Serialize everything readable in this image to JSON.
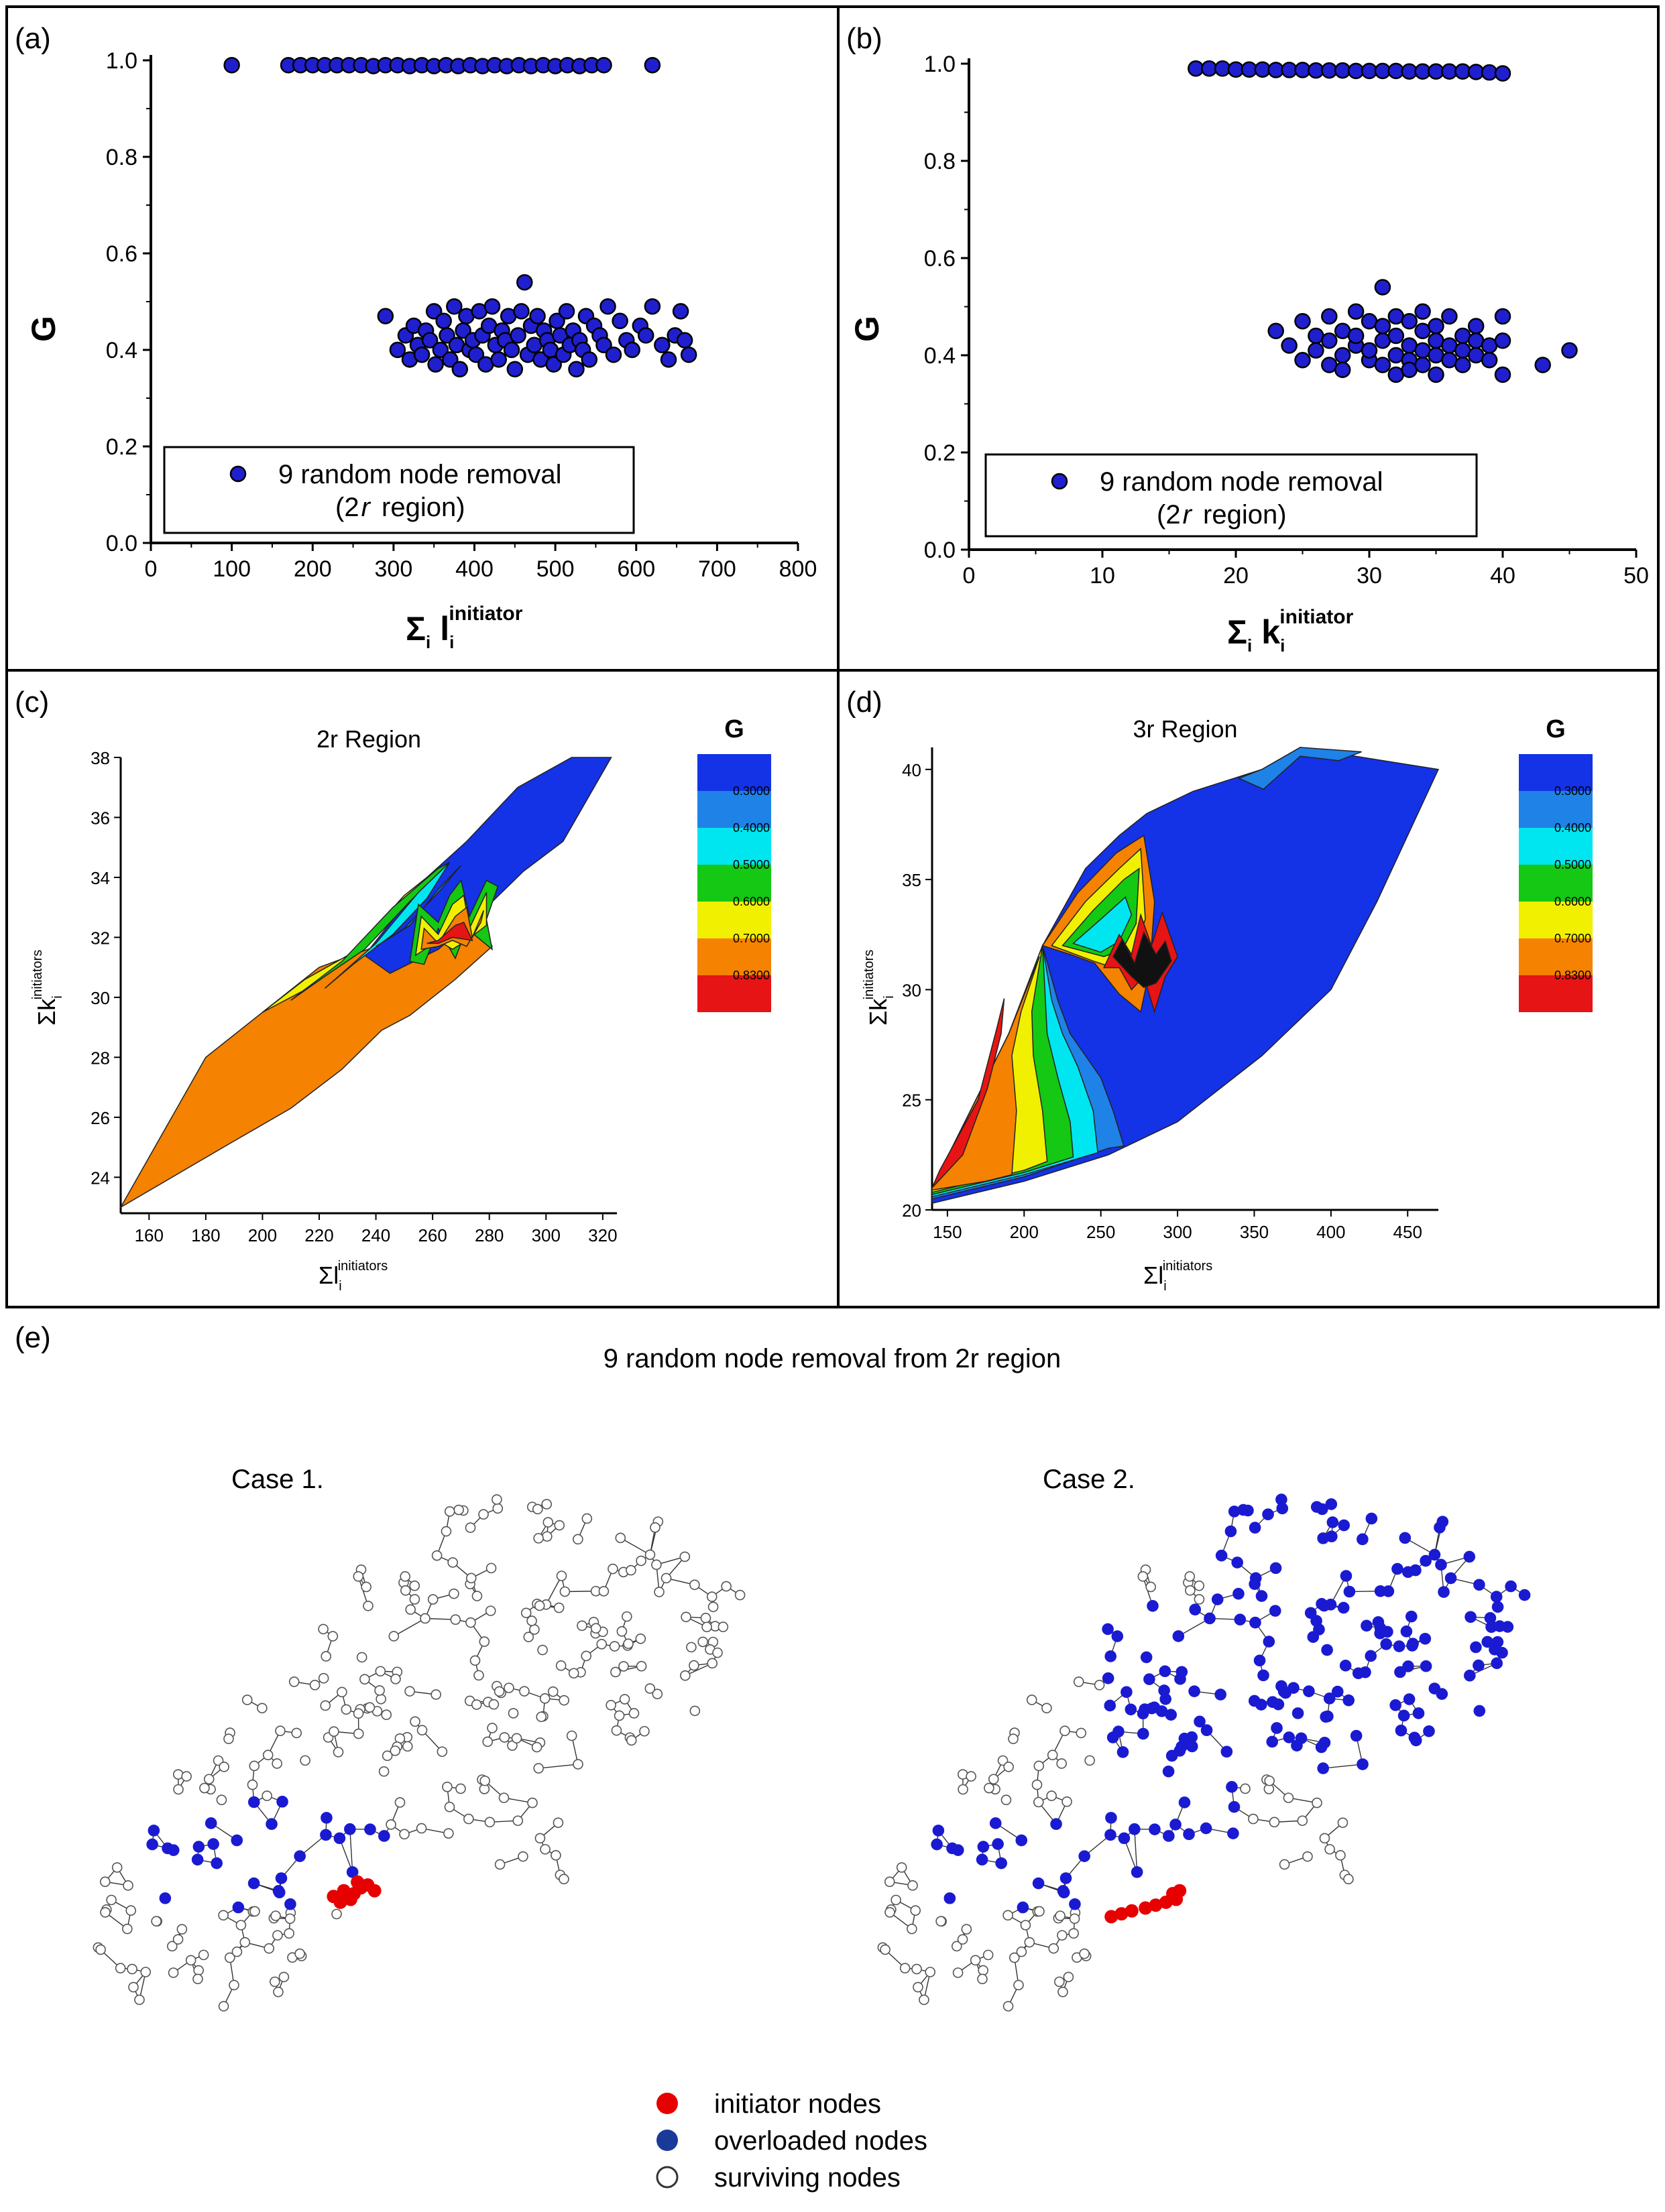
{
  "panel_labels": [
    "(a)",
    "(b)",
    "(c)",
    "(d)",
    "(e)"
  ],
  "chart_data": [
    {
      "id": "a",
      "type": "scatter",
      "xlabel": "Σi li initiator",
      "ylabel": "G",
      "xlim": [
        0,
        800
      ],
      "ylim": [
        0.0,
        1.0
      ],
      "xticks": [
        0,
        100,
        200,
        300,
        400,
        500,
        600,
        700,
        800
      ],
      "yticks": [
        0.0,
        0.2,
        0.4,
        0.6,
        0.8,
        1.0
      ],
      "legend": {
        "entries": [
          "9 random node removal",
          "(2r region)"
        ],
        "placement": "bottom-left"
      },
      "marker_color": "#1f1fcf",
      "series": [
        {
          "name": "9 random node removal",
          "points": [
            [
              100,
              0.99
            ],
            [
              170,
              0.99
            ],
            [
              185,
              0.99
            ],
            [
              200,
              0.99
            ],
            [
              215,
              0.99
            ],
            [
              230,
              0.99
            ],
            [
              245,
              0.99
            ],
            [
              260,
              0.99
            ],
            [
              275,
              0.988
            ],
            [
              290,
              0.99
            ],
            [
              305,
              0.99
            ],
            [
              320,
              0.988
            ],
            [
              335,
              0.99
            ],
            [
              350,
              0.988
            ],
            [
              365,
              0.99
            ],
            [
              380,
              0.988
            ],
            [
              395,
              0.99
            ],
            [
              410,
              0.988
            ],
            [
              425,
              0.99
            ],
            [
              440,
              0.988
            ],
            [
              455,
              0.99
            ],
            [
              470,
              0.988
            ],
            [
              485,
              0.99
            ],
            [
              500,
              0.988
            ],
            [
              515,
              0.99
            ],
            [
              530,
              0.988
            ],
            [
              545,
              0.99
            ],
            [
              560,
              0.99
            ],
            [
              620,
              0.99
            ],
            [
              290,
              0.47
            ],
            [
              305,
              0.4
            ],
            [
              315,
              0.43
            ],
            [
              320,
              0.38
            ],
            [
              325,
              0.45
            ],
            [
              330,
              0.41
            ],
            [
              335,
              0.39
            ],
            [
              340,
              0.44
            ],
            [
              345,
              0.42
            ],
            [
              350,
              0.48
            ],
            [
              352,
              0.37
            ],
            [
              358,
              0.4
            ],
            [
              362,
              0.46
            ],
            [
              366,
              0.43
            ],
            [
              370,
              0.38
            ],
            [
              375,
              0.49
            ],
            [
              378,
              0.41
            ],
            [
              382,
              0.36
            ],
            [
              386,
              0.44
            ],
            [
              390,
              0.47
            ],
            [
              394,
              0.4
            ],
            [
              398,
              0.42
            ],
            [
              402,
              0.39
            ],
            [
              406,
              0.48
            ],
            [
              410,
              0.43
            ],
            [
              414,
              0.37
            ],
            [
              418,
              0.45
            ],
            [
              422,
              0.49
            ],
            [
              426,
              0.41
            ],
            [
              430,
              0.38
            ],
            [
              434,
              0.44
            ],
            [
              438,
              0.42
            ],
            [
              442,
              0.47
            ],
            [
              446,
              0.4
            ],
            [
              450,
              0.36
            ],
            [
              454,
              0.43
            ],
            [
              458,
              0.48
            ],
            [
              462,
              0.54
            ],
            [
              466,
              0.39
            ],
            [
              470,
              0.45
            ],
            [
              474,
              0.41
            ],
            [
              478,
              0.47
            ],
            [
              482,
              0.38
            ],
            [
              486,
              0.44
            ],
            [
              490,
              0.42
            ],
            [
              494,
              0.4
            ],
            [
              498,
              0.37
            ],
            [
              502,
              0.46
            ],
            [
              506,
              0.43
            ],
            [
              510,
              0.39
            ],
            [
              514,
              0.48
            ],
            [
              518,
              0.41
            ],
            [
              522,
              0.44
            ],
            [
              526,
              0.36
            ],
            [
              530,
              0.42
            ],
            [
              534,
              0.4
            ],
            [
              538,
              0.47
            ],
            [
              542,
              0.38
            ],
            [
              548,
              0.45
            ],
            [
              555,
              0.43
            ],
            [
              560,
              0.41
            ],
            [
              565,
              0.49
            ],
            [
              572,
              0.39
            ],
            [
              580,
              0.46
            ],
            [
              588,
              0.42
            ],
            [
              595,
              0.4
            ],
            [
              605,
              0.45
            ],
            [
              612,
              0.43
            ],
            [
              620,
              0.49
            ],
            [
              632,
              0.41
            ],
            [
              640,
              0.38
            ],
            [
              648,
              0.43
            ],
            [
              655,
              0.48
            ],
            [
              660,
              0.42
            ],
            [
              665,
              0.39
            ]
          ]
        }
      ]
    },
    {
      "id": "b",
      "type": "scatter",
      "xlabel": "Σi ki initiator",
      "ylabel": "G",
      "xlim": [
        0,
        50
      ],
      "ylim": [
        0.0,
        1.0
      ],
      "xticks": [
        0,
        10,
        20,
        30,
        40,
        50
      ],
      "yticks": [
        0.0,
        0.2,
        0.4,
        0.6,
        0.8,
        1.0
      ],
      "legend": {
        "entries": [
          "9 random node removal",
          "(2r region)"
        ],
        "placement": "bottom-left"
      },
      "marker_color": "#1f1fcf",
      "series": [
        {
          "name": "9 random node removal",
          "points": [
            [
              17,
              0.99
            ],
            [
              18,
              0.99
            ],
            [
              19,
              0.99
            ],
            [
              20,
              0.988
            ],
            [
              21,
              0.988
            ],
            [
              22,
              0.988
            ],
            [
              23,
              0.987
            ],
            [
              24,
              0.987
            ],
            [
              25,
              0.987
            ],
            [
              26,
              0.986
            ],
            [
              27,
              0.986
            ],
            [
              28,
              0.986
            ],
            [
              29,
              0.985
            ],
            [
              30,
              0.985
            ],
            [
              31,
              0.985
            ],
            [
              32,
              0.985
            ],
            [
              33,
              0.984
            ],
            [
              34,
              0.984
            ],
            [
              35,
              0.984
            ],
            [
              36,
              0.984
            ],
            [
              37,
              0.984
            ],
            [
              38,
              0.983
            ],
            [
              39,
              0.982
            ],
            [
              40,
              0.98
            ],
            [
              23,
              0.45
            ],
            [
              24,
              0.42
            ],
            [
              25,
              0.47
            ],
            [
              25,
              0.39
            ],
            [
              26,
              0.44
            ],
            [
              26,
              0.41
            ],
            [
              27,
              0.48
            ],
            [
              27,
              0.38
            ],
            [
              27,
              0.43
            ],
            [
              28,
              0.45
            ],
            [
              28,
              0.4
            ],
            [
              28,
              0.37
            ],
            [
              29,
              0.49
            ],
            [
              29,
              0.42
            ],
            [
              29,
              0.44
            ],
            [
              30,
              0.39
            ],
            [
              30,
              0.47
            ],
            [
              30,
              0.41
            ],
            [
              31,
              0.54
            ],
            [
              31,
              0.43
            ],
            [
              31,
              0.38
            ],
            [
              31,
              0.46
            ],
            [
              32,
              0.4
            ],
            [
              32,
              0.48
            ],
            [
              32,
              0.36
            ],
            [
              32,
              0.44
            ],
            [
              33,
              0.42
            ],
            [
              33,
              0.39
            ],
            [
              33,
              0.47
            ],
            [
              33,
              0.37
            ],
            [
              34,
              0.45
            ],
            [
              34,
              0.41
            ],
            [
              34,
              0.38
            ],
            [
              34,
              0.49
            ],
            [
              35,
              0.43
            ],
            [
              35,
              0.4
            ],
            [
              35,
              0.36
            ],
            [
              35,
              0.46
            ],
            [
              36,
              0.42
            ],
            [
              36,
              0.39
            ],
            [
              36,
              0.48
            ],
            [
              37,
              0.44
            ],
            [
              37,
              0.41
            ],
            [
              37,
              0.38
            ],
            [
              38,
              0.46
            ],
            [
              38,
              0.4
            ],
            [
              38,
              0.43
            ],
            [
              39,
              0.42
            ],
            [
              39,
              0.39
            ],
            [
              40,
              0.43
            ],
            [
              40,
              0.36
            ],
            [
              40,
              0.48
            ],
            [
              43,
              0.38
            ],
            [
              45,
              0.41
            ]
          ]
        }
      ]
    },
    {
      "id": "c",
      "type": "contour",
      "title": "2r  Region",
      "xlabel": "Σl initiators i",
      "ylabel": "Σk initiators i",
      "xlim": [
        150,
        325
      ],
      "ylim": [
        22.8,
        38
      ],
      "xticks": [
        160,
        180,
        200,
        220,
        240,
        260,
        280,
        300,
        320
      ],
      "yticks": [
        24,
        26,
        28,
        30,
        32,
        34,
        36,
        38
      ],
      "colorbar": {
        "title": "G",
        "levels": [
          "0.3000",
          "0.4000",
          "0.5000",
          "0.6000",
          "0.7000",
          "0.8300"
        ],
        "colors": [
          "#1432e6",
          "#1e82e6",
          "#00e6f0",
          "#14c814",
          "#f0f000",
          "#f58200",
          "#e61414"
        ]
      },
      "regions": [
        {
          "level": "orange",
          "points": [
            [
              150,
              23
            ],
            [
              180,
              28
            ],
            [
              200,
              29.5
            ],
            [
              220,
              31
            ],
            [
              240,
              31.7
            ],
            [
              260,
              32.2
            ],
            [
              275,
              32.8
            ],
            [
              280,
              31.5
            ],
            [
              265,
              30.8
            ],
            [
              245,
              29
            ],
            [
              230,
              27.8
            ],
            [
              210,
              26.5
            ],
            [
              185,
              25
            ],
            [
              150,
              23
            ]
          ]
        },
        {
          "level": "blue",
          "points": [
            [
              245,
              30.8
            ],
            [
              275,
              33.3
            ],
            [
              295,
              34
            ],
            [
              308,
              35
            ],
            [
              322,
              38
            ],
            [
              308,
              38
            ],
            [
              290,
              37
            ],
            [
              272,
              35
            ],
            [
              258,
              34
            ],
            [
              245,
              32.5
            ],
            [
              235,
              31.5
            ],
            [
              245,
              30.8
            ]
          ]
        }
      ]
    },
    {
      "id": "d",
      "type": "contour",
      "title": "3r  Region",
      "xlabel": "Σl initiators i",
      "ylabel": "Σk initiators i",
      "xlim": [
        140,
        470
      ],
      "ylim": [
        20,
        41
      ],
      "xticks": [
        150,
        200,
        250,
        300,
        350,
        400,
        450
      ],
      "yticks": [
        20,
        25,
        30,
        35,
        40
      ],
      "colorbar": {
        "title": "G",
        "levels": [
          "0.3000",
          "0.4000",
          "0.5000",
          "0.6000",
          "0.7000",
          "0.8300"
        ],
        "colors": [
          "#1432e6",
          "#1e82e6",
          "#00e6f0",
          "#14c814",
          "#f0f000",
          "#f58200",
          "#e61414"
        ]
      }
    }
  ],
  "panel_e": {
    "title": "9 random node removal from 2r region",
    "cases": [
      "Case 1.",
      "Case 2."
    ],
    "legend": [
      {
        "label": "initiator nodes",
        "color": "#e60000"
      },
      {
        "label": "overloaded nodes",
        "color": "#1a1ad2"
      },
      {
        "label": "surviving nodes",
        "color": "#ffffff"
      }
    ]
  }
}
